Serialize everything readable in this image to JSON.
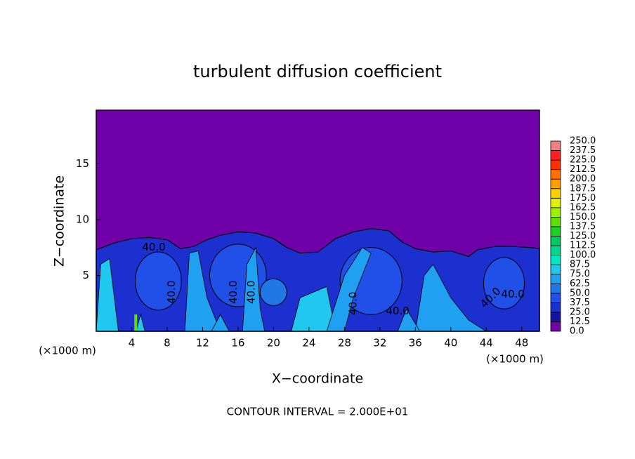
{
  "chart_data": {
    "type": "contour",
    "title": "turbulent diffusion coefficient",
    "xlabel": "X−coordinate",
    "ylabel": "Z−coordinate",
    "x_unit_left": "(×1000 m)",
    "x_unit_right": "(×1000 m)",
    "footnote": "CONTOUR INTERVAL = 2.000E+01",
    "xlim": [
      0,
      50
    ],
    "ylim": [
      0,
      19.8
    ],
    "xticks": [
      4,
      8,
      12,
      16,
      20,
      24,
      28,
      32,
      36,
      40,
      44,
      48
    ],
    "yticks": [
      5,
      10,
      15
    ],
    "contour_labels": [
      "40.0",
      "40.0",
      "40.0",
      "40.0",
      "40.0",
      "40.0",
      "40.0",
      "40.0"
    ],
    "colorbar": {
      "levels": [
        {
          "value": 0,
          "label": "0.0"
        },
        {
          "value": 12.5,
          "label": "12.5"
        },
        {
          "value": 25,
          "label": "25.0"
        },
        {
          "value": 37.5,
          "label": "37.5"
        },
        {
          "value": 50,
          "label": "50.0"
        },
        {
          "value": 62.5,
          "label": "62.5"
        },
        {
          "value": 75,
          "label": "75.0"
        },
        {
          "value": 87.5,
          "label": "87.5"
        },
        {
          "value": 100,
          "label": "100.0"
        },
        {
          "value": 112.5,
          "label": "112.5"
        },
        {
          "value": 125,
          "label": "125.0"
        },
        {
          "value": 137.5,
          "label": "137.5"
        },
        {
          "value": 150,
          "label": "150.0"
        },
        {
          "value": 162.5,
          "label": "162.5"
        },
        {
          "value": 175,
          "label": "175.0"
        },
        {
          "value": 187.5,
          "label": "187.5"
        },
        {
          "value": 200,
          "label": "200.0"
        },
        {
          "value": 212.5,
          "label": "212.5"
        },
        {
          "value": 225,
          "label": "225.0"
        },
        {
          "value": 237.5,
          "label": "237.5"
        },
        {
          "value": 250,
          "label": "250.0"
        }
      ],
      "colors": [
        "#7000a8",
        "#1414a0",
        "#1c30d0",
        "#2050e8",
        "#1f78e6",
        "#20a0f0",
        "#20c8f0",
        "#00e8c8",
        "#00d890",
        "#00c860",
        "#20d020",
        "#60e000",
        "#a0f000",
        "#e0f000",
        "#ffd000",
        "#ffa000",
        "#ff7000",
        "#ff3000",
        "#ff2020",
        "#f08080"
      ]
    }
  }
}
